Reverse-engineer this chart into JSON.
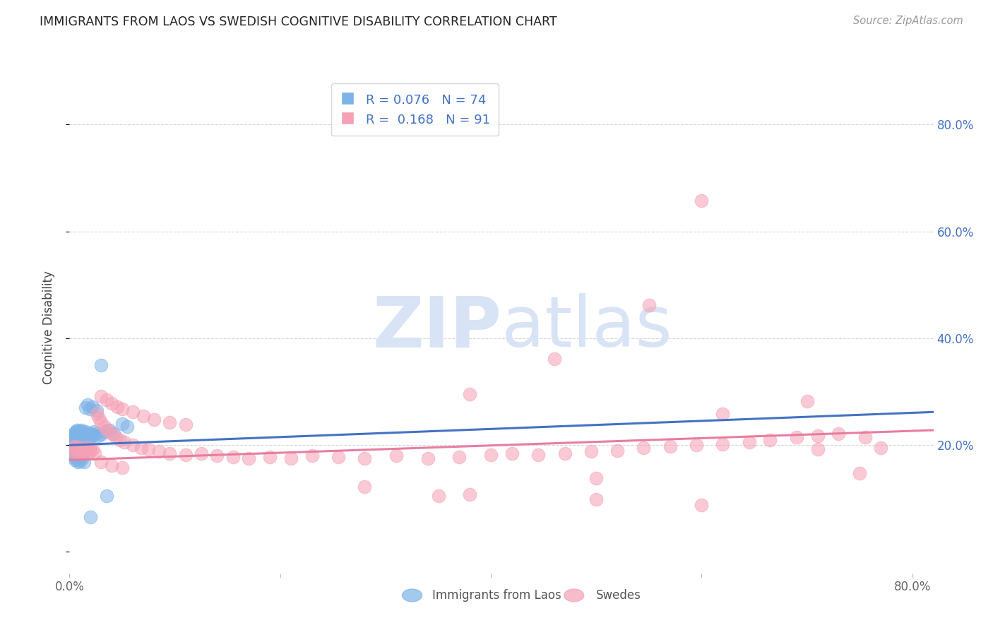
{
  "title": "IMMIGRANTS FROM LAOS VS SWEDISH COGNITIVE DISABILITY CORRELATION CHART",
  "source": "Source: ZipAtlas.com",
  "ylabel": "Cognitive Disability",
  "legend_label1": "Immigrants from Laos",
  "legend_label2": "Swedes",
  "R1": "0.076",
  "N1": "74",
  "R2": "0.168",
  "N2": "91",
  "color_blue": "#7EB3E8",
  "color_pink": "#F5A0B5",
  "color_blue_line": "#4472C4",
  "color_pink_line": "#E87DA0",
  "color_blue_text": "#4472C4",
  "color_title": "#222222",
  "watermark_color": "#D8E4F5",
  "background_color": "#FFFFFF",
  "xlim": [
    0.0,
    0.82
  ],
  "ylim": [
    -0.04,
    0.88
  ],
  "blue_line": [
    0.0,
    0.82,
    0.2,
    0.262
  ],
  "pink_line": [
    0.0,
    0.82,
    0.172,
    0.228
  ],
  "blue_scatter_x": [
    0.002,
    0.003,
    0.003,
    0.004,
    0.004,
    0.005,
    0.005,
    0.005,
    0.006,
    0.006,
    0.006,
    0.007,
    0.007,
    0.007,
    0.007,
    0.008,
    0.008,
    0.008,
    0.009,
    0.009,
    0.009,
    0.01,
    0.01,
    0.01,
    0.01,
    0.011,
    0.011,
    0.011,
    0.012,
    0.012,
    0.012,
    0.013,
    0.013,
    0.013,
    0.014,
    0.014,
    0.015,
    0.015,
    0.016,
    0.016,
    0.017,
    0.018,
    0.019,
    0.02,
    0.02,
    0.021,
    0.022,
    0.023,
    0.025,
    0.027,
    0.03,
    0.033,
    0.038,
    0.042,
    0.05,
    0.055,
    0.003,
    0.004,
    0.005,
    0.006,
    0.007,
    0.008,
    0.009,
    0.01,
    0.012,
    0.014,
    0.015,
    0.017,
    0.019,
    0.022,
    0.026,
    0.03,
    0.035,
    0.02
  ],
  "blue_scatter_y": [
    0.215,
    0.22,
    0.205,
    0.218,
    0.2,
    0.222,
    0.21,
    0.195,
    0.225,
    0.215,
    0.2,
    0.228,
    0.218,
    0.208,
    0.195,
    0.225,
    0.215,
    0.2,
    0.222,
    0.21,
    0.198,
    0.225,
    0.218,
    0.21,
    0.2,
    0.228,
    0.22,
    0.21,
    0.225,
    0.215,
    0.205,
    0.222,
    0.215,
    0.205,
    0.22,
    0.21,
    0.225,
    0.215,
    0.222,
    0.212,
    0.22,
    0.218,
    0.215,
    0.222,
    0.215,
    0.22,
    0.218,
    0.225,
    0.222,
    0.218,
    0.22,
    0.225,
    0.228,
    0.222,
    0.24,
    0.235,
    0.185,
    0.178,
    0.172,
    0.18,
    0.175,
    0.168,
    0.178,
    0.17,
    0.175,
    0.168,
    0.27,
    0.275,
    0.268,
    0.272,
    0.265,
    0.35,
    0.105,
    0.065
  ],
  "pink_scatter_x": [
    0.003,
    0.004,
    0.005,
    0.006,
    0.007,
    0.008,
    0.009,
    0.01,
    0.011,
    0.012,
    0.013,
    0.014,
    0.015,
    0.016,
    0.017,
    0.018,
    0.019,
    0.02,
    0.022,
    0.024,
    0.026,
    0.028,
    0.03,
    0.033,
    0.036,
    0.04,
    0.044,
    0.048,
    0.052,
    0.06,
    0.068,
    0.075,
    0.085,
    0.095,
    0.11,
    0.125,
    0.14,
    0.155,
    0.17,
    0.19,
    0.21,
    0.23,
    0.255,
    0.28,
    0.31,
    0.34,
    0.37,
    0.4,
    0.42,
    0.445,
    0.47,
    0.495,
    0.52,
    0.545,
    0.57,
    0.595,
    0.62,
    0.645,
    0.665,
    0.69,
    0.71,
    0.73,
    0.755,
    0.77,
    0.03,
    0.035,
    0.04,
    0.045,
    0.05,
    0.06,
    0.07,
    0.08,
    0.095,
    0.11,
    0.03,
    0.04,
    0.05,
    0.38,
    0.5,
    0.6,
    0.5,
    0.38,
    0.28,
    0.6,
    0.7,
    0.71,
    0.75,
    0.62,
    0.55,
    0.46,
    0.35
  ],
  "pink_scatter_y": [
    0.195,
    0.188,
    0.198,
    0.192,
    0.185,
    0.195,
    0.188,
    0.195,
    0.19,
    0.185,
    0.192,
    0.188,
    0.195,
    0.19,
    0.185,
    0.192,
    0.195,
    0.188,
    0.192,
    0.185,
    0.258,
    0.25,
    0.242,
    0.235,
    0.228,
    0.222,
    0.215,
    0.21,
    0.205,
    0.2,
    0.195,
    0.192,
    0.188,
    0.185,
    0.182,
    0.185,
    0.18,
    0.178,
    0.175,
    0.178,
    0.175,
    0.18,
    0.178,
    0.175,
    0.18,
    0.175,
    0.178,
    0.182,
    0.185,
    0.182,
    0.185,
    0.188,
    0.19,
    0.195,
    0.198,
    0.2,
    0.202,
    0.205,
    0.21,
    0.215,
    0.218,
    0.222,
    0.215,
    0.195,
    0.292,
    0.285,
    0.278,
    0.272,
    0.268,
    0.262,
    0.255,
    0.248,
    0.242,
    0.238,
    0.168,
    0.162,
    0.158,
    0.108,
    0.098,
    0.088,
    0.138,
    0.295,
    0.122,
    0.658,
    0.282,
    0.192,
    0.148,
    0.258,
    0.462,
    0.362,
    0.105
  ],
  "grid_color": "#CCCCCC",
  "grid_linestyle": "--",
  "grid_alpha": 0.8
}
